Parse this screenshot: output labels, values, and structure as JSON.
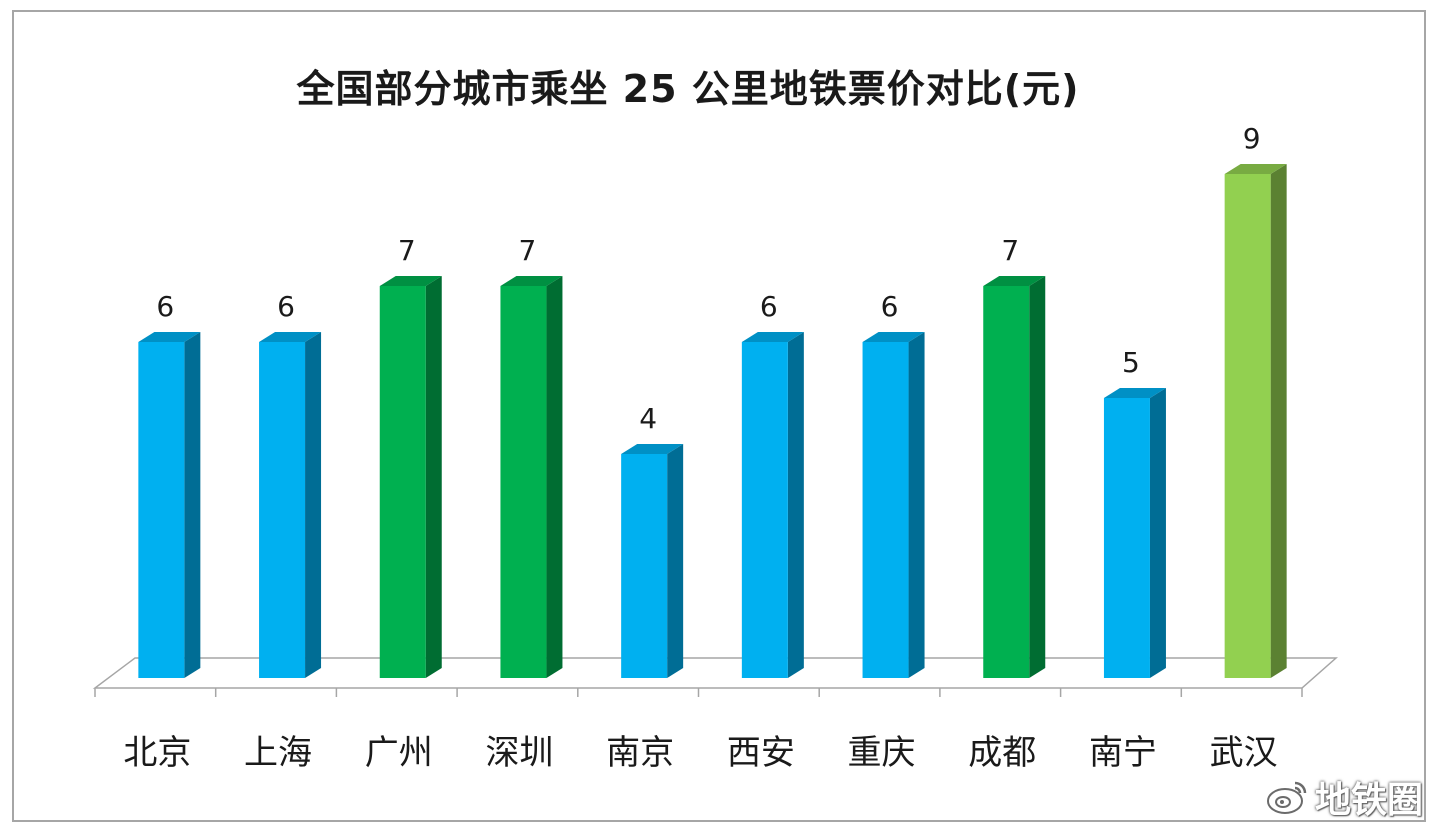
{
  "chart_data": {
    "type": "bar",
    "title": "全国部分城市乘坐 25 公里地铁票价对比(元)",
    "categories": [
      "北京",
      "上海",
      "广州",
      "深圳",
      "南京",
      "西安",
      "重庆",
      "成都",
      "南宁",
      "武汉"
    ],
    "values": [
      6,
      6,
      7,
      7,
      4,
      6,
      6,
      7,
      5,
      9
    ],
    "bar_colors": [
      "#00b0f0",
      "#00b0f0",
      "#00b050",
      "#00b050",
      "#00b0f0",
      "#00b0f0",
      "#00b0f0",
      "#00b050",
      "#00b0f0",
      "#92d050"
    ],
    "ylim": [
      0,
      10
    ],
    "grid": false,
    "legend": "none",
    "data_labels": true,
    "style": "3d-column"
  },
  "watermark": {
    "text": "地铁圈",
    "icon": "weibo-icon"
  }
}
